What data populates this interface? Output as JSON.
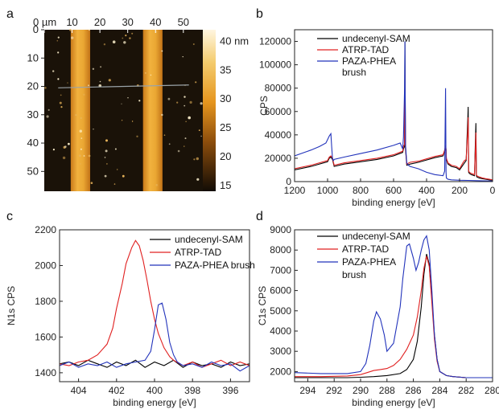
{
  "panels": {
    "a": {
      "letter": "a",
      "type": "heatmap",
      "x_ticks": [
        "0 µm",
        "10",
        "20",
        "30",
        "40",
        "50"
      ],
      "x_tick_values": [
        0,
        10,
        20,
        30,
        40,
        50
      ],
      "y_ticks": [
        "0",
        "10",
        "20",
        "30",
        "40",
        "50"
      ],
      "y_tick_values": [
        0,
        10,
        20,
        30,
        40,
        50
      ],
      "xlim": [
        0,
        57
      ],
      "ylim": [
        0,
        57
      ],
      "colorbar_ticks": [
        "40 nm",
        "35",
        "30",
        "25",
        "20",
        "15"
      ],
      "colorbar_values": [
        40,
        35,
        30,
        25,
        20,
        15
      ],
      "colorbar_range": [
        14,
        42
      ],
      "stripes_um": [
        [
          9.5,
          16.5
        ],
        [
          35.5,
          42.5
        ]
      ],
      "line_profile_um": [
        [
          5,
          20.5
        ],
        [
          52,
          19.5
        ]
      ],
      "colors": {
        "stripe": "#e9a12c",
        "background": "#1a1208"
      }
    },
    "b": {
      "letter": "b",
      "chart_data": {
        "type": "line",
        "xlabel": "binding energy [eV]",
        "ylabel": "CPS",
        "xlim": [
          1200,
          0
        ],
        "ylim": [
          0,
          130000
        ],
        "x_ticks": [
          "1200",
          "1000",
          "800",
          "600",
          "400",
          "200",
          "0"
        ],
        "x_tick_values": [
          1200,
          1000,
          800,
          600,
          400,
          200,
          0
        ],
        "y_ticks": [
          "0",
          "20000",
          "40000",
          "60000",
          "80000",
          "100000",
          "120000"
        ],
        "y_tick_values": [
          0,
          20000,
          40000,
          60000,
          80000,
          100000,
          120000
        ],
        "legend": [
          "undecenyl-SAM",
          "ATRP-TAD",
          "PAZA-PHEA",
          "brush"
        ],
        "legend_position": "top-right",
        "series": [
          {
            "name": "undecenyl-SAM",
            "color": "#000000",
            "x": [
              1200,
              1100,
              1000,
              990,
              980,
              970,
              960,
              900,
              800,
              700,
              600,
              545,
              540,
              533,
              531,
              528,
              520,
              500,
              450,
              400,
              350,
              300,
              290,
              285,
              282,
              280,
              270,
              250,
              220,
              200,
              180,
              170,
              160,
              150,
              148,
              145,
              140,
              130,
              110,
              105,
              101,
              98,
              95,
              80,
              60,
              40,
              20,
              0
            ],
            "y": [
              10000,
              13000,
              17000,
              20000,
              21000,
              19000,
              13000,
              15000,
              17000,
              19000,
              22000,
              25000,
              28000,
              30000,
              120000,
              28000,
              14000,
              15000,
              16500,
              18500,
              20500,
              22000,
              26000,
              30000,
              27000,
              19000,
              15000,
              13000,
              12000,
              10000,
              14000,
              16000,
              18000,
              55000,
              64000,
              8000,
              7000,
              6000,
              5000,
              30000,
              50000,
              5000,
              4000,
              3000,
              2500,
              2000,
              1500,
              1000
            ]
          },
          {
            "name": "ATRP-TAD",
            "color": "#e02020",
            "x": [
              1200,
              1100,
              1000,
              990,
              980,
              970,
              960,
              900,
              800,
              700,
              600,
              545,
              540,
              533,
              531,
              528,
              520,
              500,
              450,
              400,
              350,
              300,
              290,
              285,
              282,
              280,
              270,
              250,
              220,
              200,
              180,
              170,
              160,
              150,
              148,
              145,
              140,
              130,
              110,
              105,
              101,
              98,
              95,
              80,
              60,
              40,
              20,
              0
            ],
            "y": [
              11000,
              14000,
              18000,
              21000,
              22000,
              20000,
              14000,
              16000,
              18000,
              20000,
              23000,
              26000,
              30000,
              32000,
              95000,
              30000,
              15000,
              16500,
              17500,
              19500,
              21500,
              23000,
              27000,
              31000,
              28000,
              20000,
              16000,
              14000,
              13000,
              11000,
              16000,
              18000,
              19000,
              45000,
              55000,
              9000,
              8000,
              7000,
              6000,
              25000,
              42000,
              6000,
              5000,
              4000,
              3000,
              2500,
              2000,
              1500
            ]
          },
          {
            "name": "PAZA-PHEA",
            "color": "#2233bb",
            "x": [
              1200,
              1100,
              1050,
              1010,
              1000,
              990,
              980,
              975,
              970,
              965,
              960,
              900,
              800,
              700,
              600,
              560,
              545,
              540,
              533,
              531,
              528,
              520,
              510,
              500,
              450,
              400,
              350,
              300,
              290,
              285,
              282,
              280,
              270,
              250,
              200,
              150,
              100,
              50,
              0
            ],
            "y": [
              22000,
              27000,
              30000,
              33000,
              36000,
              39000,
              41000,
              30000,
              20000,
              18000,
              19000,
              21000,
              24000,
              27000,
              31000,
              33000,
              28000,
              38000,
              80000,
              120000,
              32000,
              16000,
              14000,
              13000,
              11000,
              8000,
              6000,
              5000,
              9000,
              80000,
              8000,
              3000,
              2000,
              1500,
              1200,
              1000,
              800,
              600,
              500
            ]
          }
        ]
      }
    },
    "c": {
      "letter": "c",
      "chart_data": {
        "type": "line",
        "xlabel": "binding energy [eV]",
        "ylabel": "N1s CPS",
        "xlim": [
          405,
          395
        ],
        "ylim": [
          1350,
          2200
        ],
        "x_ticks": [
          "404",
          "402",
          "400",
          "398",
          "396"
        ],
        "x_tick_values": [
          404,
          402,
          400,
          398,
          396
        ],
        "y_ticks": [
          "1400",
          "1600",
          "1800",
          "2000",
          "2200"
        ],
        "y_tick_values": [
          1400,
          1600,
          1800,
          2000,
          2200
        ],
        "legend": [
          "undecenyl-SAM",
          "ATRP-TAD",
          "PAZA-PHEA brush"
        ],
        "legend_position": "top-right",
        "series": [
          {
            "name": "undecenyl-SAM",
            "color": "#000000",
            "x": [
              405,
              404.5,
              404,
              403.5,
              403,
              402.5,
              402,
              401.5,
              401,
              400.5,
              400,
              399.5,
              399,
              398.5,
              398,
              397.5,
              397,
              396.5,
              396,
              395.5,
              395
            ],
            "y": [
              1450,
              1460,
              1440,
              1470,
              1450,
              1430,
              1460,
              1440,
              1470,
              1430,
              1460,
              1440,
              1470,
              1430,
              1460,
              1440,
              1450,
              1430,
              1460,
              1440,
              1450
            ]
          },
          {
            "name": "ATRP-TAD",
            "color": "#e02020",
            "x": [
              405,
              404.5,
              404,
              403.5,
              403,
              402.5,
              402.2,
              402,
              401.7,
              401.5,
              401.2,
              401,
              400.8,
              400.6,
              400.4,
              400.2,
              400,
              399.8,
              399.5,
              399.2,
              399,
              398.5,
              398,
              397.5,
              397,
              396.5,
              396,
              395.5,
              395
            ],
            "y": [
              1450,
              1440,
              1460,
              1470,
              1500,
              1560,
              1650,
              1760,
              1900,
              2010,
              2100,
              2140,
              2110,
              2030,
              1920,
              1800,
              1700,
              1620,
              1540,
              1490,
              1470,
              1440,
              1460,
              1430,
              1450,
              1470,
              1440,
              1460,
              1440
            ]
          },
          {
            "name": "PAZA-PHEA brush",
            "color": "#2233bb",
            "x": [
              405,
              404.5,
              404,
              403.5,
              403,
              402.5,
              402,
              401.5,
              401,
              400.5,
              400.2,
              400,
              399.8,
              399.6,
              399.4,
              399.2,
              399,
              398.8,
              398.5,
              398,
              397.5,
              397,
              396.5,
              396,
              395.5,
              395
            ],
            "y": [
              1440,
              1460,
              1430,
              1450,
              1440,
              1460,
              1430,
              1450,
              1460,
              1470,
              1520,
              1640,
              1780,
              1790,
              1700,
              1570,
              1500,
              1460,
              1440,
              1450,
              1430,
              1460,
              1440,
              1450,
              1410,
              1440
            ]
          }
        ]
      }
    },
    "d": {
      "letter": "d",
      "chart_data": {
        "type": "line",
        "xlabel": "binding energy [eV]",
        "ylabel": "C1s CPS",
        "xlim": [
          295,
          280
        ],
        "ylim": [
          1500,
          9000
        ],
        "x_ticks": [
          "294",
          "292",
          "290",
          "288",
          "286",
          "284",
          "282",
          "280"
        ],
        "x_tick_values": [
          294,
          292,
          290,
          288,
          286,
          284,
          282,
          280
        ],
        "y_ticks": [
          "2000",
          "3000",
          "4000",
          "5000",
          "6000",
          "7000",
          "8000",
          "9000"
        ],
        "y_tick_values": [
          2000,
          3000,
          4000,
          5000,
          6000,
          7000,
          8000,
          9000
        ],
        "legend": [
          "undecenyl-SAM",
          "ATRP-TAD",
          "PAZA-PHEA",
          "brush"
        ],
        "legend_position": "top-right",
        "series": [
          {
            "name": "undecenyl-SAM",
            "color": "#000000",
            "x": [
              295,
              293,
              291,
              290,
              289,
              288,
              287,
              286.5,
              286,
              285.7,
              285.4,
              285.2,
              285,
              284.8,
              284.6,
              284.4,
              284.2,
              284,
              283.5,
              283,
              282,
              281,
              280
            ],
            "y": [
              1700,
              1700,
              1700,
              1720,
              1750,
              1800,
              1900,
              2100,
              2600,
              3500,
              5200,
              6800,
              7800,
              7300,
              5600,
              3800,
              2600,
              2000,
              1800,
              1750,
              1700,
              1700,
              1700
            ]
          },
          {
            "name": "ATRP-TAD",
            "color": "#e02020",
            "x": [
              295,
              293,
              291,
              290,
              289.5,
              289,
              288.5,
              288,
              287.5,
              287,
              286.5,
              286,
              285.7,
              285.4,
              285.2,
              285,
              284.8,
              284.6,
              284.4,
              284.2,
              284,
              283.5,
              283,
              282,
              281,
              280
            ],
            "y": [
              1750,
              1750,
              1780,
              1850,
              1950,
              2050,
              2100,
              2150,
              2300,
              2600,
              3100,
              3800,
              4700,
              6000,
              7100,
              7700,
              7200,
              5400,
              3600,
              2500,
              2000,
              1800,
              1750,
              1700,
              1700,
              1700
            ]
          },
          {
            "name": "PAZA-PHEA",
            "color": "#2233bb",
            "x": [
              295,
              293,
              291,
              290,
              289.6,
              289.3,
              289,
              288.8,
              288.5,
              288.2,
              288,
              287.5,
              287,
              286.8,
              286.5,
              286.3,
              286,
              285.8,
              285.6,
              285.4,
              285.2,
              285,
              284.8,
              284.6,
              284.4,
              284.2,
              284,
              283.5,
              283,
              282,
              281,
              280
            ],
            "y": [
              1950,
              1900,
              1900,
              2000,
              2400,
              3300,
              4500,
              4950,
              4600,
              3800,
              3000,
              3400,
              5200,
              6600,
              8200,
              8300,
              7600,
              7000,
              7400,
              8000,
              8500,
              8700,
              8000,
              6000,
              3800,
              2600,
              2000,
              1800,
              1750,
              1700,
              1700,
              1700
            ]
          }
        ]
      }
    }
  }
}
